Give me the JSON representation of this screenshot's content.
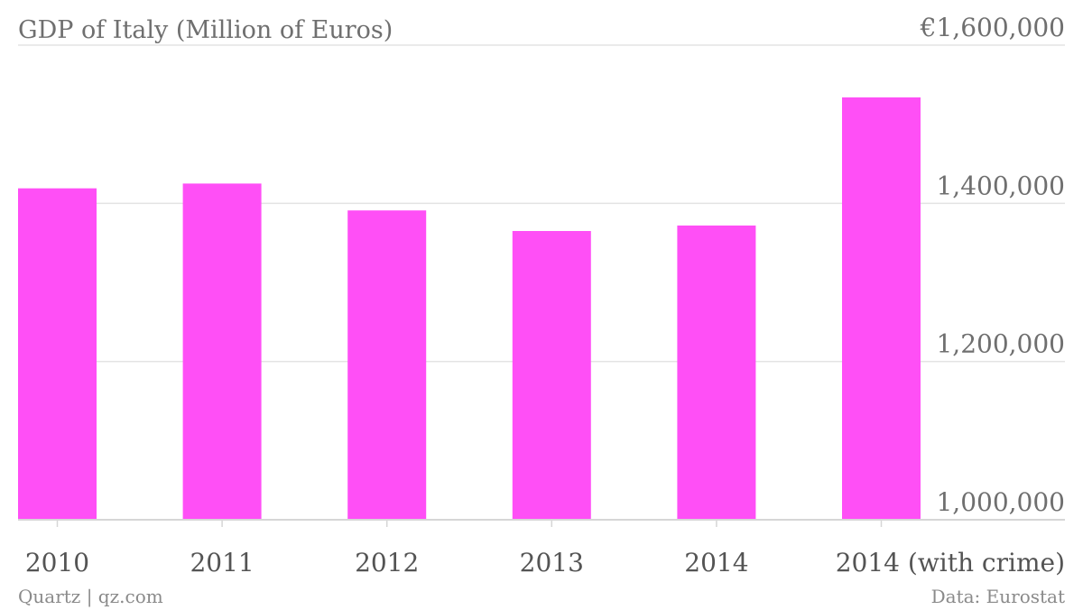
{
  "chart_data": {
    "type": "bar",
    "title": "GDP of Italy (Million of Euros)",
    "categories": [
      "2010",
      "2011",
      "2012",
      "2013",
      "2014",
      "2014 (with crime)"
    ],
    "values": [
      1419000,
      1425000,
      1391000,
      1365000,
      1372000,
      1534000
    ],
    "ylim": [
      1000000,
      1600000
    ],
    "y_ticks": [
      1000000,
      1200000,
      1400000,
      1600000
    ],
    "y_tick_labels": [
      "1,000,000",
      "1,200,000",
      "1,400,000",
      "€1,600,000"
    ],
    "axis_side": "right",
    "grid": true,
    "bar_color": "#ff4ff6",
    "xlabel": "",
    "ylabel": ""
  },
  "footer": {
    "source_left": "Quartz | qz.com",
    "source_right": "Data: Eurostat"
  }
}
